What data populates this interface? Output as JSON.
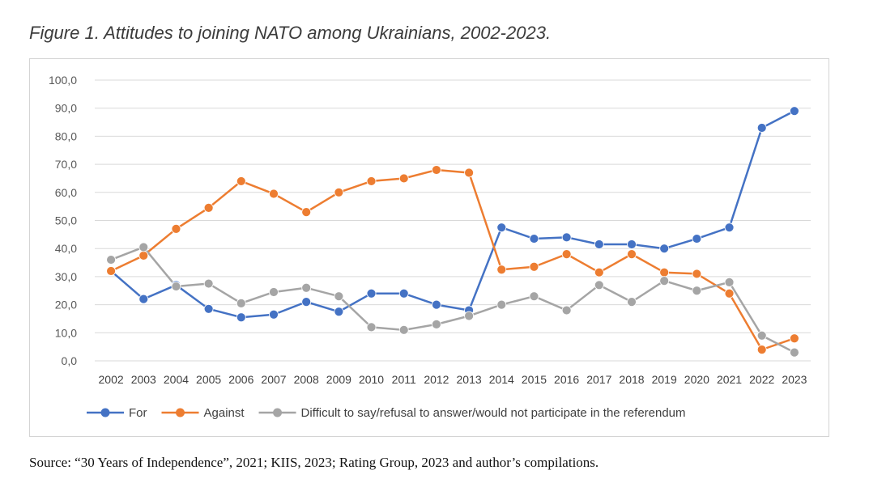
{
  "figure": {
    "title": "Figure 1. Attitudes to joining NATO among Ukrainians, 2002-2023.",
    "source": "Source: “30 Years of Independence”, 2021; KIIS, 2023; Rating Group, 2023 and author’s compilations."
  },
  "chart_data": {
    "type": "line",
    "title": "",
    "xlabel": "",
    "ylabel": "",
    "ylim": [
      0,
      100
    ],
    "yticks": [
      "0,0",
      "10,0",
      "20,0",
      "30,0",
      "40,0",
      "50,0",
      "60,0",
      "70,0",
      "80,0",
      "90,0",
      "100,0"
    ],
    "grid": true,
    "legend_position": "bottom",
    "categories": [
      "2002",
      "2003",
      "2004",
      "2005",
      "2006",
      "2007",
      "2008",
      "2009",
      "2010",
      "2011",
      "2012",
      "2013",
      "2014",
      "2015",
      "2016",
      "2017",
      "2018",
      "2019",
      "2020",
      "2021",
      "2022",
      "2023"
    ],
    "series": [
      {
        "name": "For",
        "color": "#4472c4",
        "values": [
          32.0,
          22.0,
          27.0,
          18.5,
          15.5,
          16.5,
          21.0,
          17.5,
          24.0,
          24.0,
          20.0,
          18.0,
          47.5,
          43.5,
          44.0,
          41.5,
          41.5,
          40.0,
          43.5,
          47.5,
          83.0,
          89.0
        ]
      },
      {
        "name": "Against",
        "color": "#ed7d31",
        "values": [
          32.0,
          37.5,
          47.0,
          54.5,
          64.0,
          59.5,
          53.0,
          60.0,
          64.0,
          65.0,
          68.0,
          67.0,
          32.5,
          33.5,
          38.0,
          31.5,
          38.0,
          31.5,
          31.0,
          24.0,
          4.0,
          8.0
        ]
      },
      {
        "name": "Difficult to say/refusal to answer/would not participate in the referendum",
        "color": "#a5a5a5",
        "values": [
          36.0,
          40.5,
          26.5,
          27.5,
          20.5,
          24.5,
          26.0,
          23.0,
          12.0,
          11.0,
          13.0,
          16.0,
          20.0,
          23.0,
          18.0,
          27.0,
          21.0,
          28.5,
          25.0,
          28.0,
          9.0,
          3.0
        ]
      }
    ]
  }
}
